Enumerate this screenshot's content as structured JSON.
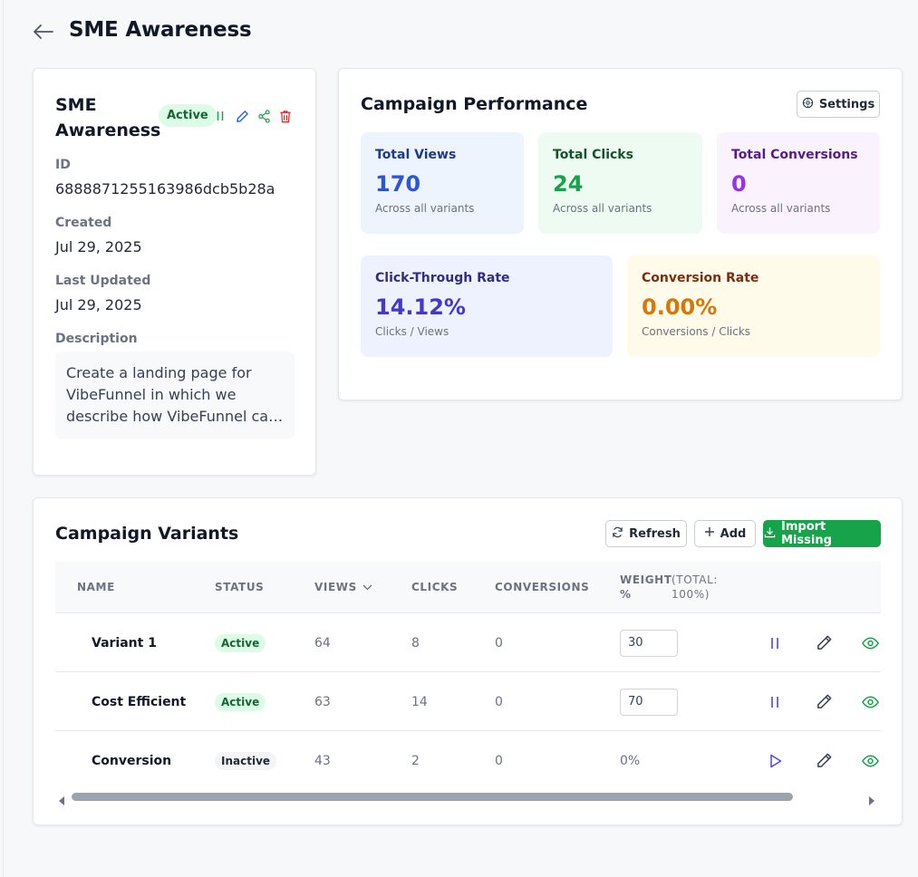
{
  "header": {
    "title": "SME Awareness"
  },
  "campaign": {
    "name": "SME Awareness",
    "status": "Active",
    "fields": {
      "id_label": "ID",
      "id_value": "6888871255163986dcb5b28a",
      "created_label": "Created",
      "created_value": "Jul 29, 2025",
      "updated_label": "Last Updated",
      "updated_value": "Jul 29, 2025",
      "description_label": "Description",
      "description_value": "Create a landing page for VibeFunnel in which we describe how VibeFunnel can help solve the problems of SMEs"
    }
  },
  "performance": {
    "title": "Campaign Performance",
    "settings_label": "Settings",
    "stats": {
      "views": {
        "label": "Total Views",
        "value": "170",
        "sub": "Across all variants"
      },
      "clicks": {
        "label": "Total Clicks",
        "value": "24",
        "sub": "Across all variants"
      },
      "conversions": {
        "label": "Total Conversions",
        "value": "0",
        "sub": "Across all variants"
      },
      "ctr": {
        "label": "Click-Through Rate",
        "value": "14.12%",
        "sub": "Clicks / Views"
      },
      "cr": {
        "label": "Conversion Rate",
        "value": "0.00%",
        "sub": "Conversions / Clicks"
      }
    }
  },
  "variants": {
    "title": "Campaign Variants",
    "refresh_label": "Refresh",
    "add_label": "Add",
    "import_label": "Import Missing",
    "columns": {
      "name": "NAME",
      "status": "STATUS",
      "views": "VIEWS",
      "clicks": "CLICKS",
      "conversions": "CONVERSIONS",
      "weight": "WEIGHT",
      "weight_pct": "%",
      "total_label": "(TOTAL:",
      "total_value": "100%)"
    },
    "rows": [
      {
        "name": "Variant 1",
        "status": "Active",
        "views": "64",
        "clicks": "8",
        "conversions": "0",
        "weight": "30"
      },
      {
        "name": "Cost Efficient",
        "status": "Active",
        "views": "63",
        "clicks": "14",
        "conversions": "0",
        "weight": "70"
      },
      {
        "name": "Conversion",
        "status": "Inactive",
        "views": "43",
        "clicks": "2",
        "conversions": "0",
        "weight": "0%"
      }
    ]
  },
  "colors": {
    "blue": "#2f55d4",
    "green": "#16a34a",
    "purple": "#9333ea",
    "indigo": "#4338ca",
    "amber": "#d97706",
    "red": "#dc2626"
  }
}
